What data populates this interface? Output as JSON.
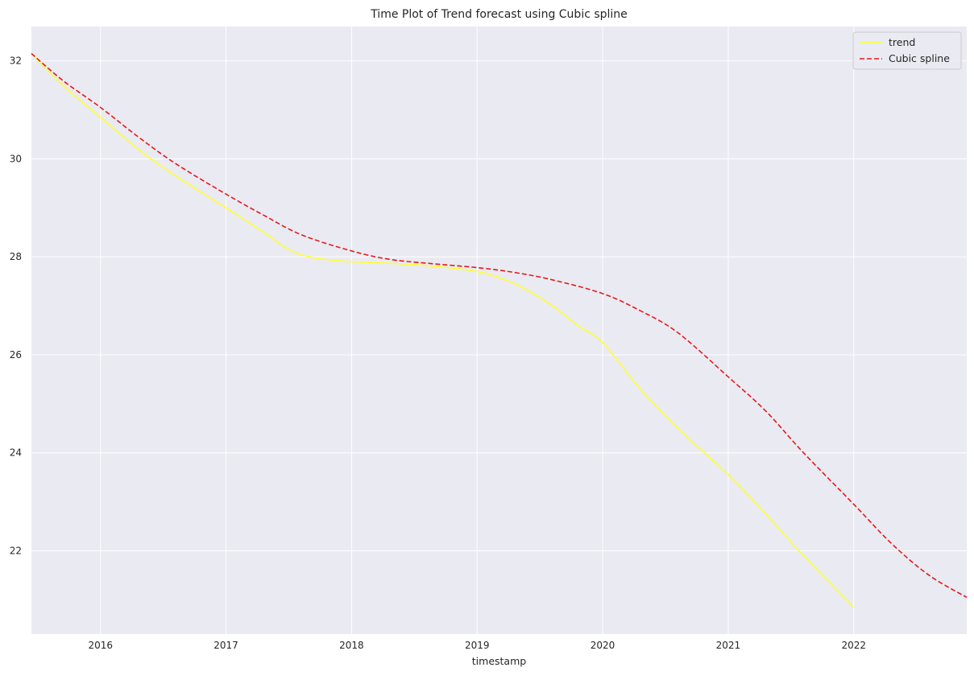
{
  "chart_data": {
    "type": "line",
    "title": "Time Plot of Trend forecast using Cubic spline",
    "xlabel": "timestamp",
    "ylabel": "",
    "xlim": [
      2015.45,
      2022.9
    ],
    "ylim": [
      20.3,
      32.7
    ],
    "x_ticks": [
      2016,
      2017,
      2018,
      2019,
      2020,
      2021,
      2022
    ],
    "y_ticks": [
      22,
      24,
      26,
      28,
      30,
      32
    ],
    "grid": true,
    "legend_position": "top-right",
    "colors": {
      "background": "#eaeaf2",
      "grid": "#ffffff",
      "trend": "#ffff33",
      "spline": "#e41a1c"
    },
    "series": [
      {
        "name": "trend",
        "style": "solid",
        "x": [
          2015.45,
          2015.7,
          2016.0,
          2016.3,
          2016.6,
          2017.0,
          2017.3,
          2017.5,
          2017.7,
          2018.0,
          2018.3,
          2018.6,
          2019.0,
          2019.3,
          2019.6,
          2019.8,
          2020.0,
          2020.3,
          2020.6,
          2021.0,
          2021.3,
          2021.6,
          2022.0
        ],
        "y": [
          32.15,
          31.5,
          30.85,
          30.2,
          29.65,
          29.0,
          28.5,
          28.15,
          27.98,
          27.9,
          27.87,
          27.82,
          27.7,
          27.45,
          27.0,
          26.6,
          26.25,
          25.3,
          24.5,
          23.55,
          22.75,
          21.9,
          20.85
        ]
      },
      {
        "name": "Cubic spline",
        "style": "dashed",
        "x": [
          2015.45,
          2015.7,
          2016.0,
          2016.3,
          2016.6,
          2017.0,
          2017.3,
          2017.6,
          2018.0,
          2018.3,
          2018.6,
          2019.0,
          2019.3,
          2019.6,
          2020.0,
          2020.3,
          2020.6,
          2021.0,
          2021.3,
          2021.6,
          2022.0,
          2022.3,
          2022.6,
          2022.9
        ],
        "y": [
          32.15,
          31.6,
          31.05,
          30.45,
          29.9,
          29.28,
          28.85,
          28.45,
          28.12,
          27.95,
          27.87,
          27.78,
          27.68,
          27.53,
          27.25,
          26.9,
          26.45,
          25.55,
          24.85,
          24.0,
          22.95,
          22.15,
          21.5,
          21.05
        ]
      }
    ]
  }
}
